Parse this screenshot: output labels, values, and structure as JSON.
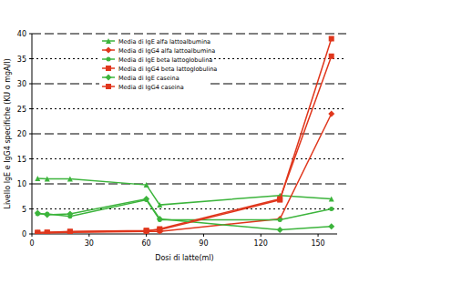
{
  "chart_data": {
    "type": "line",
    "x_label": "Dosi di latte(ml)",
    "y_label": "Livello IgE e IgG4 specifiche (KU o mgA/l)",
    "x": [
      3,
      8,
      20,
      60,
      67,
      130,
      157
    ],
    "xlim": [
      0,
      160
    ],
    "xticks": [
      0,
      30,
      60,
      90,
      120,
      150
    ],
    "ylim": [
      0,
      40
    ],
    "yticks": [
      0,
      5,
      10,
      15,
      20,
      25,
      30,
      35,
      40
    ],
    "grid": true,
    "legend": "top",
    "series": [
      {
        "name": "Media di IgE alfa lattoalbumina",
        "color": "#3cb43c",
        "marker": "triangle",
        "values": [
          11.1,
          11,
          11,
          9.8,
          5.8,
          7.7,
          7
        ]
      },
      {
        "name": "Media di IgG4 alfa lattoalbumina",
        "color": "#e0361c",
        "marker": "diamond",
        "values": [
          0.2,
          0.2,
          0.3,
          0.5,
          0.5,
          3,
          24
        ]
      },
      {
        "name": "Media di IgE beta lattoglobulina",
        "color": "#3cb43c",
        "marker": "circle",
        "values": [
          4,
          4,
          3.5,
          6.8,
          2.8,
          2.8,
          5
        ]
      },
      {
        "name": "Media di IgG4 beta lattoglobulina",
        "color": "#e0361c",
        "marker": "square",
        "values": [
          0.2,
          0.3,
          0.4,
          0.6,
          1,
          7,
          35.5
        ]
      },
      {
        "name": "Media di IgE caseina",
        "color": "#3cb43c",
        "marker": "diamond",
        "values": [
          4.2,
          3.8,
          4,
          7,
          3,
          0.8,
          1.5
        ]
      },
      {
        "name": "Media di IgG4 caseina",
        "color": "#e0361c",
        "marker": "square",
        "values": [
          0.3,
          0.3,
          0.5,
          0.7,
          0.8,
          6.8,
          39
        ]
      }
    ]
  }
}
